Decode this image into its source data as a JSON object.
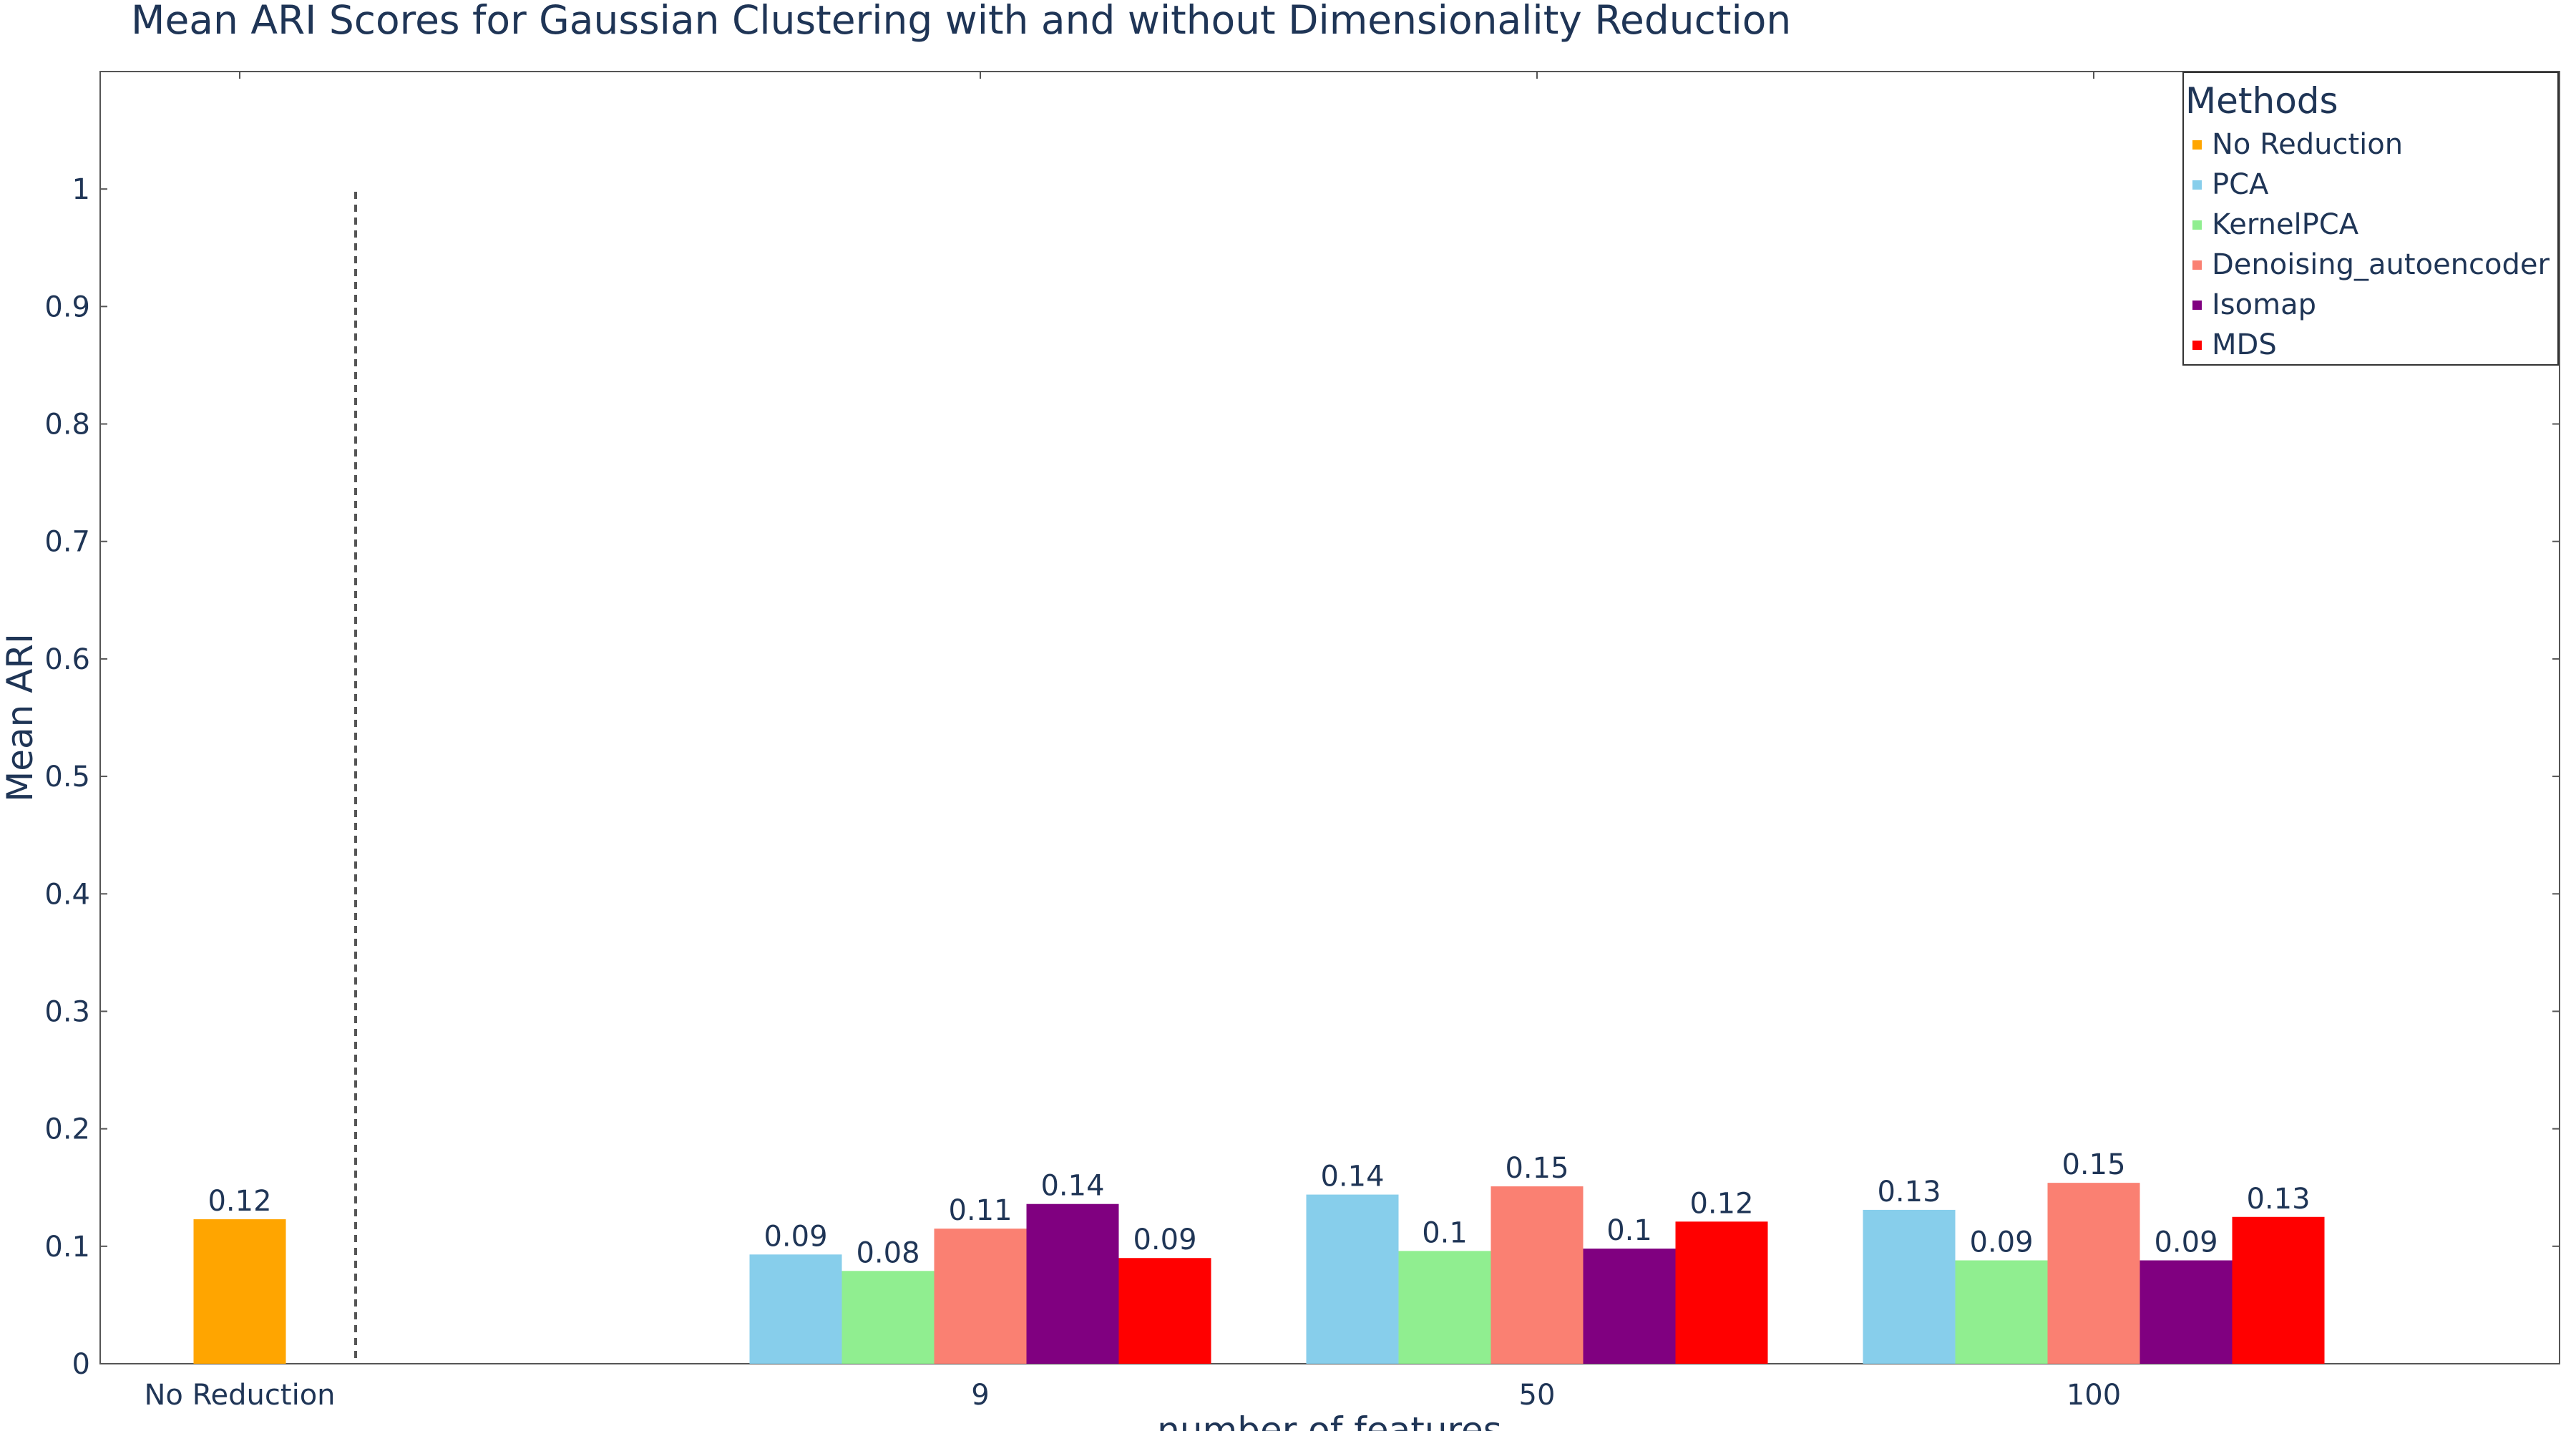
{
  "chart_data": {
    "type": "bar",
    "title": "Mean ARI Scores for Gaussian Clustering with and without Dimensionality Reduction",
    "xlabel": "number of features",
    "ylabel": "Mean ARI",
    "ylim": [
      0,
      1.1
    ],
    "yticks": [
      "0",
      "0.1",
      "0.2",
      "0.3",
      "0.4",
      "0.5",
      "0.6",
      "0.7",
      "0.8",
      "0.9",
      "1"
    ],
    "categories": [
      "No Reduction",
      "9",
      "50",
      "100"
    ],
    "legend_title": "Methods",
    "legend_position": "top-right",
    "grid": false,
    "series": [
      {
        "name": "No Reduction",
        "color": "#FFA500",
        "values": [
          0.123,
          null,
          null,
          null
        ],
        "labels": [
          "0.12",
          "",
          "",
          ""
        ]
      },
      {
        "name": "PCA",
        "color": "#87CEEB",
        "values": [
          null,
          0.093,
          0.144,
          0.131
        ],
        "labels": [
          "",
          "0.09",
          "0.14",
          "0.13"
        ]
      },
      {
        "name": "KernelPCA",
        "color": "#90EE90",
        "values": [
          null,
          0.079,
          0.096,
          0.088
        ],
        "labels": [
          "",
          "0.08",
          "0.1",
          "0.09"
        ]
      },
      {
        "name": "Denoising_autoencoder",
        "color": "#FA8072",
        "values": [
          null,
          0.115,
          0.151,
          0.154
        ],
        "labels": [
          "",
          "0.11",
          "0.15",
          "0.15"
        ]
      },
      {
        "name": "Isomap",
        "color": "#800080",
        "values": [
          null,
          0.136,
          0.098,
          0.088
        ],
        "labels": [
          "",
          "0.14",
          "0.1",
          "0.09"
        ]
      },
      {
        "name": "MDS",
        "color": "#FF0000",
        "values": [
          null,
          0.09,
          0.121,
          0.125
        ],
        "labels": [
          "",
          "0.09",
          "0.12",
          "0.13"
        ]
      }
    ]
  }
}
